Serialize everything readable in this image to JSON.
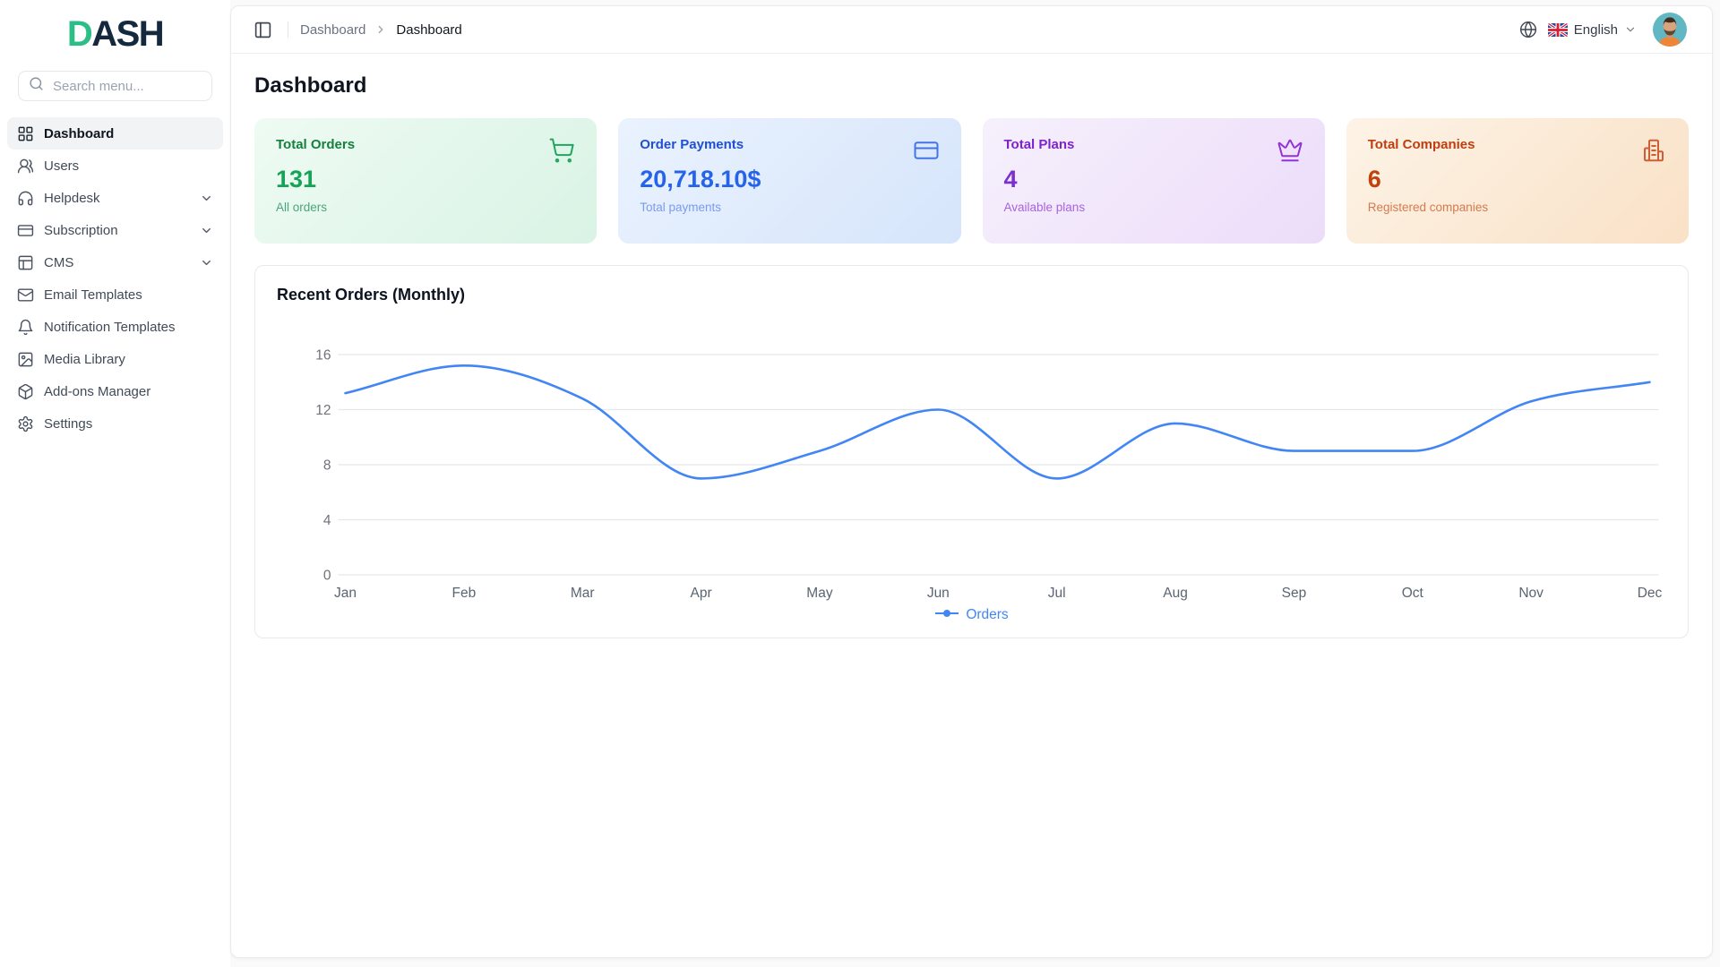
{
  "logo": {
    "first": "D",
    "rest": "ASH"
  },
  "sidebar": {
    "search": {
      "placeholder": "Search menu..."
    },
    "items": [
      {
        "label": "Dashboard",
        "icon": "grid",
        "active": true,
        "expandable": false
      },
      {
        "label": "Users",
        "icon": "users",
        "active": false,
        "expandable": false
      },
      {
        "label": "Helpdesk",
        "icon": "headphones",
        "active": false,
        "expandable": true
      },
      {
        "label": "Subscription",
        "icon": "credit-card",
        "active": false,
        "expandable": true
      },
      {
        "label": "CMS",
        "icon": "layout",
        "active": false,
        "expandable": true
      },
      {
        "label": "Email Templates",
        "icon": "mail",
        "active": false,
        "expandable": false
      },
      {
        "label": "Notification Templates",
        "icon": "bell",
        "active": false,
        "expandable": false
      },
      {
        "label": "Media Library",
        "icon": "image",
        "active": false,
        "expandable": false
      },
      {
        "label": "Add-ons Manager",
        "icon": "package",
        "active": false,
        "expandable": false
      },
      {
        "label": "Settings",
        "icon": "settings",
        "active": false,
        "expandable": false
      }
    ]
  },
  "topbar": {
    "breadcrumb": {
      "parent": "Dashboard",
      "current": "Dashboard"
    },
    "language": {
      "label": "English",
      "flag": "uk-flag"
    }
  },
  "page": {
    "title": "Dashboard"
  },
  "stats": [
    {
      "title": "Total Orders",
      "value": "131",
      "subtitle": "All orders",
      "icon": "cart",
      "theme": "green"
    },
    {
      "title": "Order Payments",
      "value": "20,718.10$",
      "subtitle": "Total payments",
      "icon": "credit-card",
      "theme": "blue"
    },
    {
      "title": "Total Plans",
      "value": "4",
      "subtitle": "Available plans",
      "icon": "crown",
      "theme": "purple"
    },
    {
      "title": "Total Companies",
      "value": "6",
      "subtitle": "Registered companies",
      "icon": "building",
      "theme": "orange"
    }
  ],
  "chart_data": {
    "type": "line",
    "title": "Recent Orders (Monthly)",
    "categories": [
      "Jan",
      "Feb",
      "Mar",
      "Apr",
      "May",
      "Jun",
      "Jul",
      "Aug",
      "Sep",
      "Oct",
      "Nov",
      "Dec"
    ],
    "series": [
      {
        "name": "Orders",
        "values": [
          13.2,
          15.2,
          12.8,
          7,
          9,
          12,
          7,
          11,
          9,
          9,
          12.6,
          14
        ],
        "color": "#4285f4"
      }
    ],
    "ylim": [
      0,
      16
    ],
    "yticks": [
      0,
      4,
      8,
      12,
      16
    ],
    "grid": true,
    "smooth": "monotone",
    "legend_position": "bottom"
  },
  "colors": {
    "chart_line": "#4285f4",
    "grid_line": "#e5e7eb",
    "accent_green": "#16a34a",
    "accent_blue": "#2563eb",
    "accent_purple": "#7c3aed",
    "accent_orange": "#c2410c"
  }
}
